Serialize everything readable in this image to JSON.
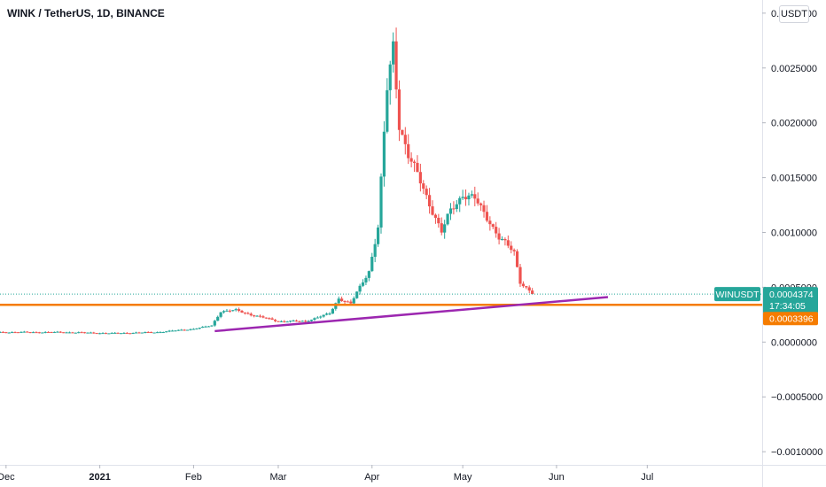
{
  "header": {
    "symbol_title": "WINK / TetherUS, 1D, BINANCE",
    "currency_button": "USDT"
  },
  "chart_data": {
    "type": "candlestick",
    "ylim": [
      -0.00112,
      0.00312
    ],
    "y_ticks": [
      "0.0030000",
      "0.0025000",
      "0.0020000",
      "0.0015000",
      "0.0010000",
      "0.0005000",
      "0.0000000",
      "−0.0005000",
      "−0.0010000"
    ],
    "y_tick_values": [
      0.003,
      0.0025,
      0.002,
      0.0015,
      0.001,
      0.0005,
      0,
      -0.0005,
      -0.001
    ],
    "x_ticks": [
      "Dec",
      "2021",
      "Feb",
      "Mar",
      "Apr",
      "May",
      "Jun",
      "Jul"
    ],
    "x_tick_dates": [
      "2020-12-01",
      "2021-01-01",
      "2021-02-01",
      "2021-03-01",
      "2021-04-01",
      "2021-05-01",
      "2021-06-01",
      "2021-07-01"
    ],
    "x_range": [
      "2020-11-29",
      "2021-08-08"
    ],
    "colors": {
      "up": "#26a69a",
      "down": "#ef5350",
      "horizontal_level": "#f57c00",
      "trendline": "#9c27b0",
      "symbol_badge": "#26a69a"
    },
    "last_price_label": {
      "symbol": "WINUSDT",
      "price": "0.0004374",
      "countdown": "17:34:05",
      "value": 0.0004374
    },
    "horizontal_level": {
      "value": 0.0003396,
      "label": "0.0003396"
    },
    "trendline": {
      "start": [
        "2021-02-08",
        0.0001
      ],
      "end": [
        "2021-06-18",
        0.00041
      ]
    },
    "price_path": [
      [
        "2020-11-29",
        9e-05
      ],
      [
        "2020-12-20",
        9e-05
      ],
      [
        "2021-01-05",
        8e-05
      ],
      [
        "2021-01-20",
        9e-05
      ],
      [
        "2021-02-01",
        0.00012
      ],
      [
        "2021-02-07",
        0.00015
      ],
      [
        "2021-02-10",
        0.00028
      ],
      [
        "2021-02-15",
        0.00029
      ],
      [
        "2021-02-20",
        0.00025
      ],
      [
        "2021-03-01",
        0.00019
      ],
      [
        "2021-03-10",
        0.00019
      ],
      [
        "2021-03-18",
        0.00026
      ],
      [
        "2021-03-21",
        0.0004
      ],
      [
        "2021-03-25",
        0.00035
      ],
      [
        "2021-03-29",
        0.00055
      ],
      [
        "2021-03-31",
        0.00065
      ],
      [
        "2021-04-03",
        0.00105
      ],
      [
        "2021-04-06",
        0.0023
      ],
      [
        "2021-04-08",
        0.0027
      ],
      [
        "2021-04-10",
        0.002
      ],
      [
        "2021-04-13",
        0.0017
      ],
      [
        "2021-04-18",
        0.0014
      ],
      [
        "2021-04-24",
        0.001
      ],
      [
        "2021-04-27",
        0.0012
      ],
      [
        "2021-05-01",
        0.00135
      ],
      [
        "2021-05-05",
        0.0013
      ],
      [
        "2021-05-10",
        0.0011
      ],
      [
        "2021-05-13",
        0.00095
      ],
      [
        "2021-05-18",
        0.00082
      ],
      [
        "2021-05-20",
        0.00055
      ],
      [
        "2021-05-24",
        0.00044
      ]
    ]
  }
}
